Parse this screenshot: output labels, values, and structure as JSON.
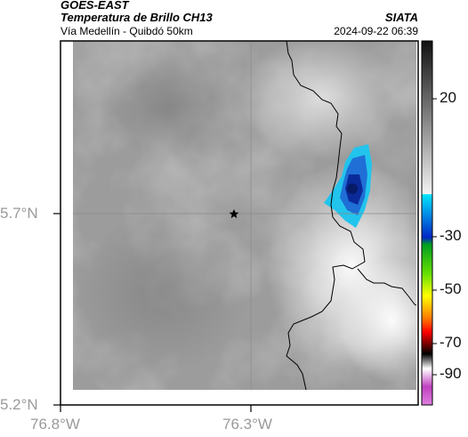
{
  "header": {
    "satellite": "GOES-EAST",
    "product": "Temperatura de Brillo CH13",
    "route": "Vía Medellín - Quibdó 50km",
    "organization": "SIATA",
    "timestamp": "2024-09-22 06:39"
  },
  "axes": {
    "lat_labels": [
      "5.7°N",
      "5.2°N"
    ],
    "lon_labels": [
      "76.8°W",
      "76.3°W"
    ]
  },
  "colorbar": {
    "ticks": [
      "20",
      "-30",
      "-50",
      "-70",
      "-90"
    ],
    "colors": {
      "grey_top": "#111111",
      "grey_light": "#f2f2f2",
      "cyan": "#00e5ff",
      "blue": "#0026c8",
      "green": "#00c800",
      "yellow": "#ffff00",
      "red": "#ff0000",
      "black": "#000000",
      "magenta": "#c040c0"
    }
  },
  "map": {
    "marker": "star",
    "border_color": "#000000"
  }
}
